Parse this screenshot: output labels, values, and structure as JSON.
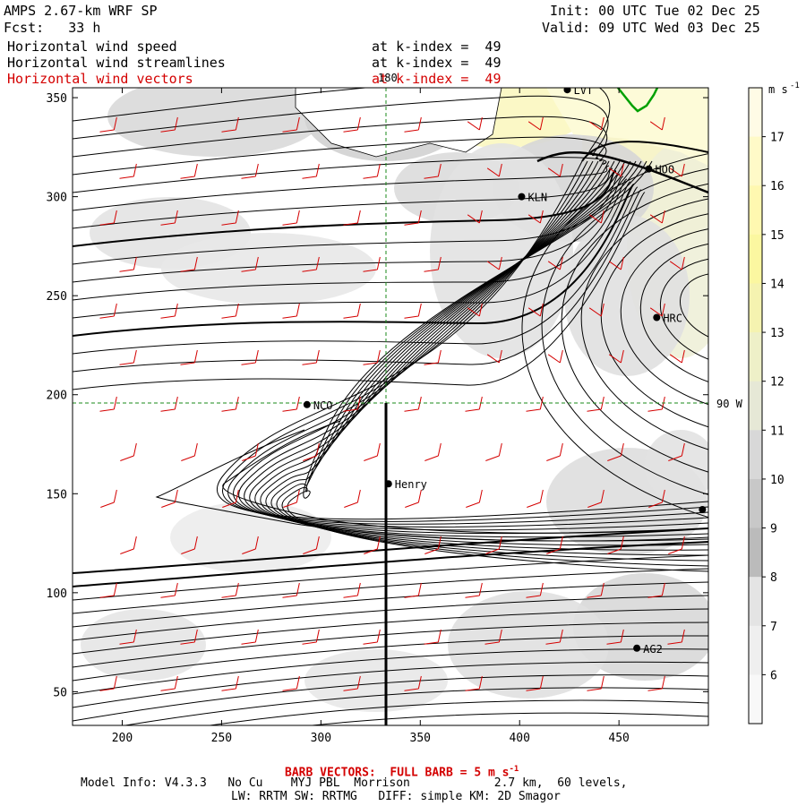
{
  "header": {
    "model": "AMPS 2.67-km WRF SP",
    "forecast": "Fcst:   33 h",
    "init": "Init: 00 UTC Tue 02 Dec 25",
    "valid": "Valid: 09 UTC Wed 03 Dec 25"
  },
  "fields": [
    {
      "name": "Horizontal wind speed",
      "level": "at k-index =  49"
    },
    {
      "name": "Horizontal wind streamlines",
      "level": "at k-index =  49"
    },
    {
      "name": "Horizontal wind vectors",
      "level": "at k-index =  49"
    }
  ],
  "axes": {
    "x_ticks": [
      "200",
      "250",
      "300",
      "350",
      "400",
      "450"
    ],
    "y_ticks": [
      "350",
      "300",
      "250",
      "200",
      "150",
      "100",
      "50"
    ],
    "xlim": [
      175,
      495
    ],
    "ylim": [
      33,
      355
    ]
  },
  "colorbar": {
    "units": "m s",
    "units_exp": "-1",
    "ticks": [
      "17",
      "16",
      "15",
      "14",
      "13",
      "12",
      "11",
      "10",
      "9",
      "8",
      "7",
      "6"
    ],
    "colors": [
      "#fffbe6",
      "#fffac8",
      "#fff8b0",
      "#fbf7a0",
      "#f5f3b0",
      "#eef0c8",
      "#e6e8d6",
      "#d8d8d8",
      "#c8c8c8",
      "#bbbbbb",
      "#e4e4e4",
      "#efefef",
      "#f8f8f8"
    ]
  },
  "stations": [
    {
      "label": "LVT",
      "x": 424,
      "y": 354
    },
    {
      "label": "HOO",
      "x": 465,
      "y": 314
    },
    {
      "label": "KLN",
      "x": 401,
      "y": 300
    },
    {
      "label": "HRC",
      "x": 469,
      "y": 239
    },
    {
      "label": "NCO",
      "x": 293,
      "y": 195
    },
    {
      "label": "Henry",
      "x": 334,
      "y": 155
    },
    {
      "label": "AG2",
      "x": 459,
      "y": 72
    },
    {
      "label": "",
      "x": 492,
      "y": 142
    }
  ],
  "gridlines": {
    "lon_label": "180",
    "lon_x": 333,
    "lat_label": "90 W",
    "lat_y": 195
  },
  "footer": {
    "barb": "BARB VECTORS:  FULL BARB = 5 m s",
    "barb_exp": "-1",
    "info1": "Model Info: V4.3.3   No Cu    MYJ PBL  Morrison            2.7 km,  60 levels,",
    "info2": "LW: RRTM SW: RRTMG   DIFF: simple KM: 2D Smagor"
  },
  "colors": {
    "barb": "#d40000",
    "stream": "#000000",
    "coast": "#00a000"
  }
}
